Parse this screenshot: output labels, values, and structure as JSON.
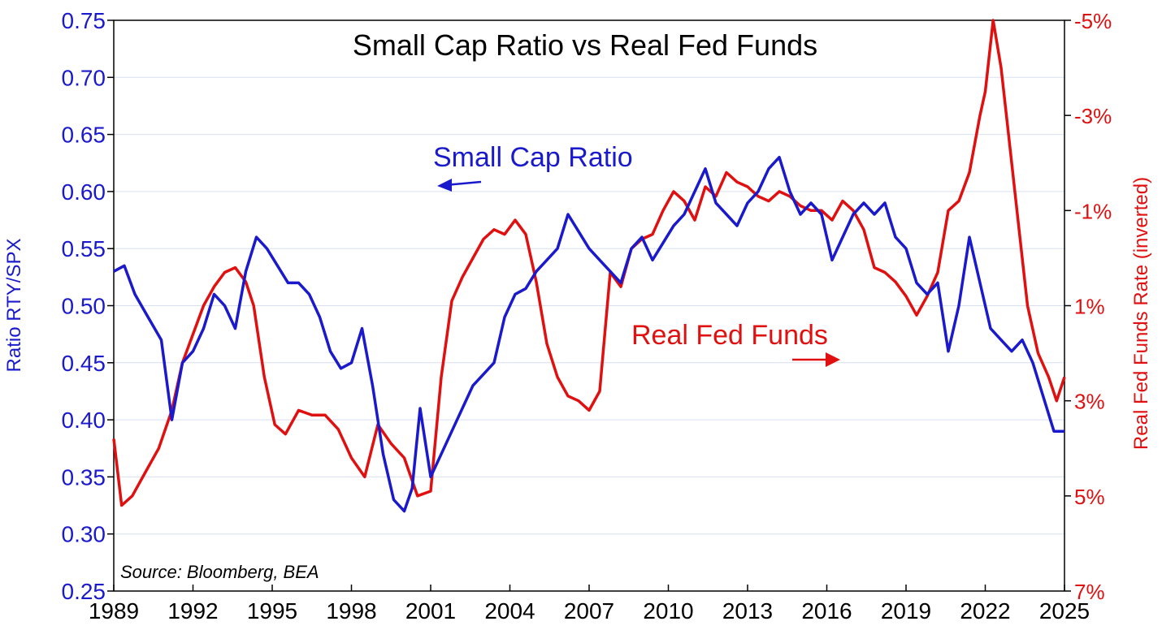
{
  "chart_data": {
    "type": "line",
    "title": "Small Cap Ratio vs Real Fed Funds",
    "source": "Source:  Bloomberg, BEA",
    "ylabel_left": "Ratio RTY/SPX",
    "ylabel_right": "Real Fed Funds Rate (inverted)",
    "xlim": [
      1989,
      2025
    ],
    "ylim_left": [
      0.25,
      0.75
    ],
    "ylim_right": [
      7,
      -5
    ],
    "right_axis_inverted": true,
    "grid": true,
    "x_ticks": [
      "1989",
      "1992",
      "1995",
      "1998",
      "2001",
      "2004",
      "2007",
      "2010",
      "2013",
      "2016",
      "2019",
      "2022",
      "2025"
    ],
    "y_ticks_left": [
      "0.75",
      "0.70",
      "0.65",
      "0.60",
      "0.55",
      "0.50",
      "0.45",
      "0.40",
      "0.35",
      "0.30",
      "0.25"
    ],
    "y_ticks_right": [
      "-5%",
      "-3%",
      "-1%",
      "1%",
      "3%",
      "5%",
      "7%"
    ],
    "annotations": [
      {
        "text": "Small Cap Ratio",
        "arrow": "left",
        "color": "#1a1acc"
      },
      {
        "text": "Real Fed Funds",
        "arrow": "right",
        "color": "#e01010"
      }
    ],
    "series": [
      {
        "name": "Small Cap Ratio",
        "axis": "left",
        "color": "#1a1acc",
        "x": [
          1989.0,
          1989.4,
          1989.8,
          1990.3,
          1990.8,
          1991.2,
          1991.6,
          1992.0,
          1992.4,
          1992.8,
          1993.2,
          1993.6,
          1994.0,
          1994.4,
          1994.8,
          1995.2,
          1995.6,
          1996.0,
          1996.4,
          1996.8,
          1997.2,
          1997.6,
          1998.0,
          1998.4,
          1998.8,
          1999.2,
          1999.6,
          2000.0,
          2000.3,
          2000.6,
          2001.0,
          2001.4,
          2001.8,
          2002.2,
          2002.6,
          2003.0,
          2003.4,
          2003.8,
          2004.2,
          2004.6,
          2005.0,
          2005.4,
          2005.8,
          2006.2,
          2006.6,
          2007.0,
          2007.4,
          2007.8,
          2008.2,
          2008.6,
          2009.0,
          2009.4,
          2009.8,
          2010.2,
          2010.6,
          2011.0,
          2011.4,
          2011.8,
          2012.2,
          2012.6,
          2013.0,
          2013.4,
          2013.8,
          2014.2,
          2014.6,
          2015.0,
          2015.4,
          2015.8,
          2016.2,
          2016.6,
          2017.0,
          2017.4,
          2017.8,
          2018.2,
          2018.6,
          2019.0,
          2019.4,
          2019.8,
          2020.2,
          2020.6,
          2021.0,
          2021.4,
          2021.8,
          2022.2,
          2022.6,
          2023.0,
          2023.4,
          2023.8,
          2024.2,
          2024.6,
          2025.0
        ],
        "y": [
          0.53,
          0.535,
          0.51,
          0.49,
          0.47,
          0.4,
          0.45,
          0.46,
          0.48,
          0.51,
          0.5,
          0.48,
          0.53,
          0.56,
          0.55,
          0.535,
          0.52,
          0.52,
          0.51,
          0.49,
          0.46,
          0.445,
          0.45,
          0.48,
          0.43,
          0.37,
          0.33,
          0.32,
          0.34,
          0.41,
          0.35,
          0.37,
          0.39,
          0.41,
          0.43,
          0.44,
          0.45,
          0.49,
          0.51,
          0.515,
          0.53,
          0.54,
          0.55,
          0.58,
          0.565,
          0.55,
          0.54,
          0.53,
          0.52,
          0.55,
          0.56,
          0.54,
          0.555,
          0.57,
          0.58,
          0.6,
          0.62,
          0.59,
          0.58,
          0.57,
          0.59,
          0.6,
          0.62,
          0.63,
          0.6,
          0.58,
          0.59,
          0.58,
          0.54,
          0.56,
          0.58,
          0.59,
          0.58,
          0.59,
          0.56,
          0.55,
          0.52,
          0.51,
          0.52,
          0.46,
          0.5,
          0.56,
          0.52,
          0.48,
          0.47,
          0.46,
          0.47,
          0.45,
          0.42,
          0.39,
          0.39
        ]
      },
      {
        "name": "Real Fed Funds",
        "axis": "right",
        "color": "#e01010",
        "x": [
          1989.0,
          1989.3,
          1989.7,
          1990.2,
          1990.7,
          1991.2,
          1991.6,
          1992.0,
          1992.4,
          1992.8,
          1993.2,
          1993.6,
          1994.0,
          1994.3,
          1994.7,
          1995.1,
          1995.5,
          1996.0,
          1996.5,
          1997.0,
          1997.5,
          1998.0,
          1998.5,
          1999.0,
          1999.5,
          2000.0,
          2000.5,
          2001.0,
          2001.4,
          2001.8,
          2002.2,
          2002.6,
          2003.0,
          2003.4,
          2003.8,
          2004.2,
          2004.6,
          2005.0,
          2005.4,
          2005.8,
          2006.2,
          2006.6,
          2007.0,
          2007.4,
          2007.8,
          2008.2,
          2008.6,
          2009.0,
          2009.4,
          2009.8,
          2010.2,
          2010.6,
          2011.0,
          2011.4,
          2011.8,
          2012.2,
          2012.6,
          2013.0,
          2013.4,
          2013.8,
          2014.2,
          2014.6,
          2015.0,
          2015.4,
          2015.8,
          2016.2,
          2016.6,
          2017.0,
          2017.4,
          2017.8,
          2018.2,
          2018.6,
          2019.0,
          2019.4,
          2019.8,
          2020.2,
          2020.6,
          2021.0,
          2021.4,
          2021.8,
          2022.0,
          2022.3,
          2022.6,
          2022.9,
          2023.2,
          2023.6,
          2024.0,
          2024.4,
          2024.7,
          2025.0
        ],
        "y": [
          3.8,
          5.2,
          5.0,
          4.5,
          4.0,
          3.2,
          2.2,
          1.6,
          1.0,
          0.6,
          0.3,
          0.2,
          0.5,
          1.0,
          2.5,
          3.5,
          3.7,
          3.2,
          3.3,
          3.3,
          3.6,
          4.2,
          4.6,
          3.5,
          3.9,
          4.2,
          5.0,
          4.9,
          2.5,
          0.9,
          0.4,
          0.0,
          -0.4,
          -0.6,
          -0.5,
          -0.8,
          -0.5,
          0.5,
          1.8,
          2.5,
          2.9,
          3.0,
          3.2,
          2.8,
          0.3,
          0.6,
          -0.2,
          -0.4,
          -0.5,
          -1.0,
          -1.4,
          -1.2,
          -0.8,
          -1.5,
          -1.3,
          -1.8,
          -1.6,
          -1.5,
          -1.3,
          -1.2,
          -1.4,
          -1.3,
          -1.1,
          -1.0,
          -1.0,
          -0.8,
          -1.2,
          -1.0,
          -0.6,
          0.2,
          0.3,
          0.5,
          0.8,
          1.2,
          0.8,
          0.3,
          -1.0,
          -1.2,
          -1.8,
          -3.0,
          -3.5,
          -5.0,
          -4.0,
          -2.5,
          -1.0,
          1.0,
          2.0,
          2.5,
          3.0,
          2.5
        ]
      }
    ]
  }
}
